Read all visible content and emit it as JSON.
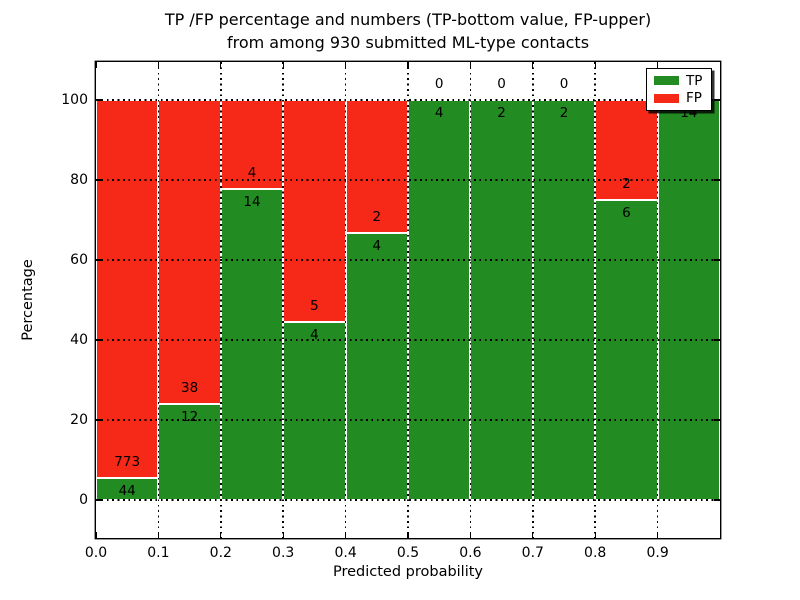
{
  "chart_data": {
    "type": "bar",
    "stacked": true,
    "title_line1": "TP /FP percentage and numbers (TP-bottom value, FP-upper)",
    "title_line2": "from among 930 submitted ML-type contacts",
    "xlabel": "Predicted probability",
    "ylabel": "Percentage",
    "x_tick_labels": [
      "0.0",
      "0.1",
      "0.2",
      "0.3",
      "0.4",
      "0.5",
      "0.6",
      "0.7",
      "0.8",
      "0.9"
    ],
    "y_tick_labels": [
      "0",
      "20",
      "40",
      "60",
      "80",
      "100"
    ],
    "y_tick_values": [
      0,
      20,
      40,
      60,
      80,
      100
    ],
    "xlim": [
      0.0,
      1.0
    ],
    "ylim": [
      0,
      100
    ],
    "bin_width": 0.1,
    "total_contacts": 930,
    "grid": "dotted-black-both-axes",
    "legend_position": "upper right",
    "series": [
      {
        "name": "TP",
        "color": "#228b22",
        "counts": [
          44,
          12,
          14,
          4,
          4,
          4,
          2,
          2,
          6,
          14
        ]
      },
      {
        "name": "FP",
        "color": "#f62817",
        "counts": [
          773,
          38,
          4,
          5,
          2,
          0,
          0,
          0,
          2,
          0
        ]
      }
    ],
    "tp_percent_by_bin": [
      5.39,
      24.0,
      77.78,
      44.44,
      66.67,
      100.0,
      100.0,
      100.0,
      75.0,
      100.0
    ],
    "label_convention": "TP-bottom value, FP-upper"
  }
}
